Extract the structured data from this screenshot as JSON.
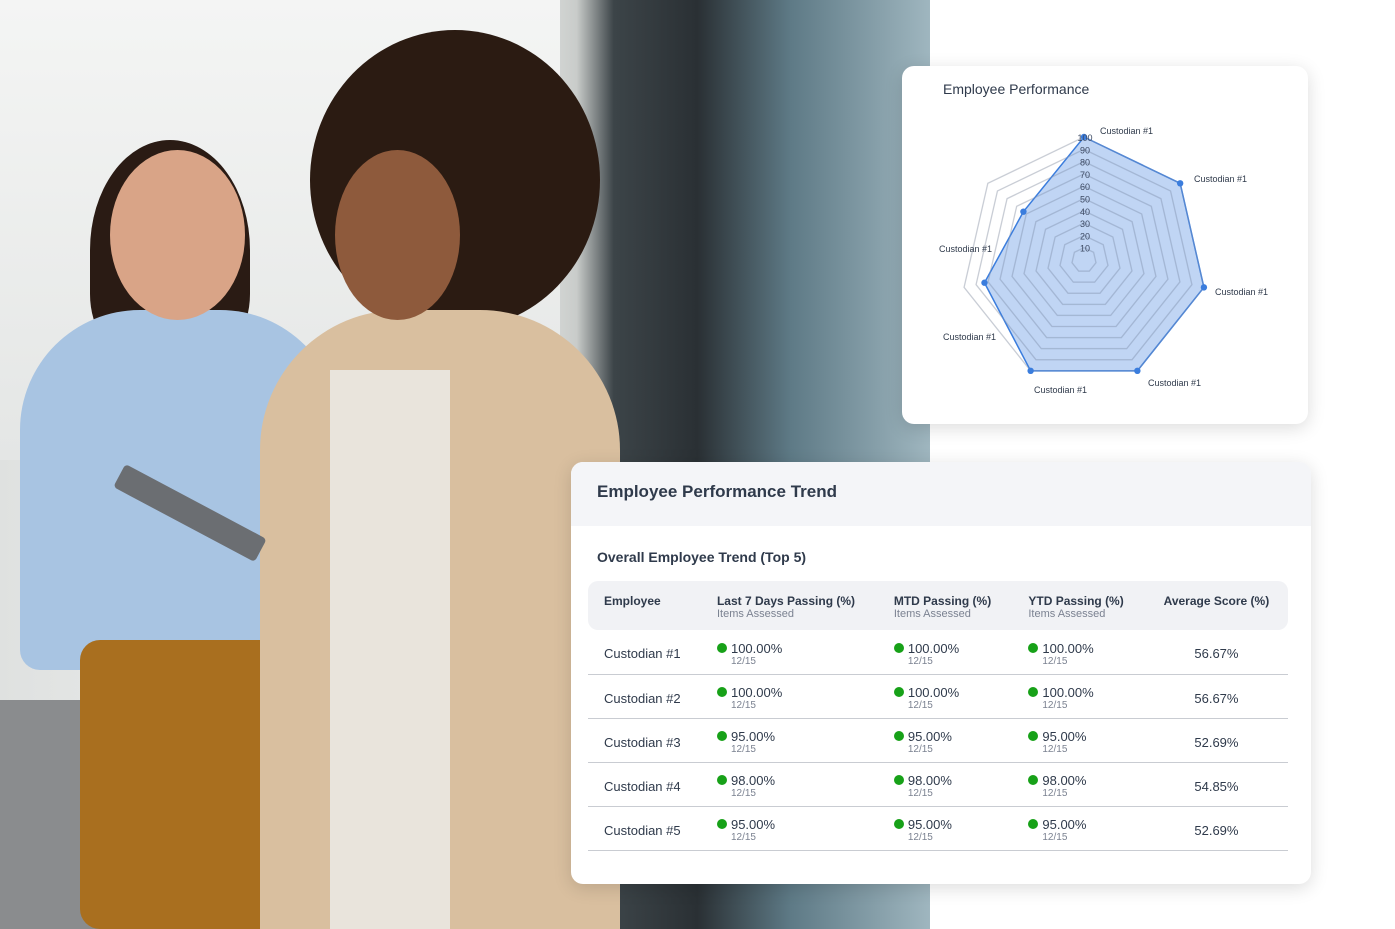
{
  "radar": {
    "title": "Employee Performance",
    "chart_data": {
      "type": "radar",
      "title": "Employee Performance",
      "categories": [
        "Custodian #1",
        "Custodian #1",
        "Custodian #1",
        "Custodian #1",
        "Custodian #1",
        "Custodian #1",
        "Custodian #1"
      ],
      "values": [
        100,
        100,
        100,
        100,
        100,
        83,
        63
      ],
      "rlim": [
        0,
        100
      ],
      "ticks": [
        "10",
        "20",
        "30",
        "40",
        "50",
        "60",
        "70",
        "80",
        "90",
        "100"
      ],
      "color": "#3b7ddd"
    }
  },
  "trend": {
    "title": "Employee Performance Trend",
    "subtitle": "Overall Employee Trend (Top 5)",
    "columns": [
      {
        "label": "Employee",
        "sub": ""
      },
      {
        "label": "Last 7 Days Passing (%)",
        "sub": "Items Assessed"
      },
      {
        "label": "MTD Passing (%)",
        "sub": "Items Assessed"
      },
      {
        "label": "YTD Passing (%)",
        "sub": "Items Assessed"
      },
      {
        "label": "Average Score (%)",
        "sub": ""
      }
    ],
    "rows": [
      {
        "name": "Custodian #1",
        "d7": "100.00%",
        "d7s": "12/15",
        "mtd": "100.00%",
        "mtds": "12/15",
        "ytd": "100.00%",
        "ytds": "12/15",
        "avg": "56.67%"
      },
      {
        "name": "Custodian #2",
        "d7": "100.00%",
        "d7s": "12/15",
        "mtd": "100.00%",
        "mtds": "12/15",
        "ytd": "100.00%",
        "ytds": "12/15",
        "avg": "56.67%"
      },
      {
        "name": "Custodian #3",
        "d7": "95.00%",
        "d7s": "12/15",
        "mtd": "95.00%",
        "mtds": "12/15",
        "ytd": "95.00%",
        "ytds": "12/15",
        "avg": "52.69%"
      },
      {
        "name": "Custodian #4",
        "d7": "98.00%",
        "d7s": "12/15",
        "mtd": "98.00%",
        "mtds": "12/15",
        "ytd": "98.00%",
        "ytds": "12/15",
        "avg": "54.85%"
      },
      {
        "name": "Custodian #5",
        "d7": "95.00%",
        "d7s": "12/15",
        "mtd": "95.00%",
        "mtds": "12/15",
        "ytd": "95.00%",
        "ytds": "12/15",
        "avg": "52.69%"
      }
    ],
    "status_color": "#17a118"
  }
}
